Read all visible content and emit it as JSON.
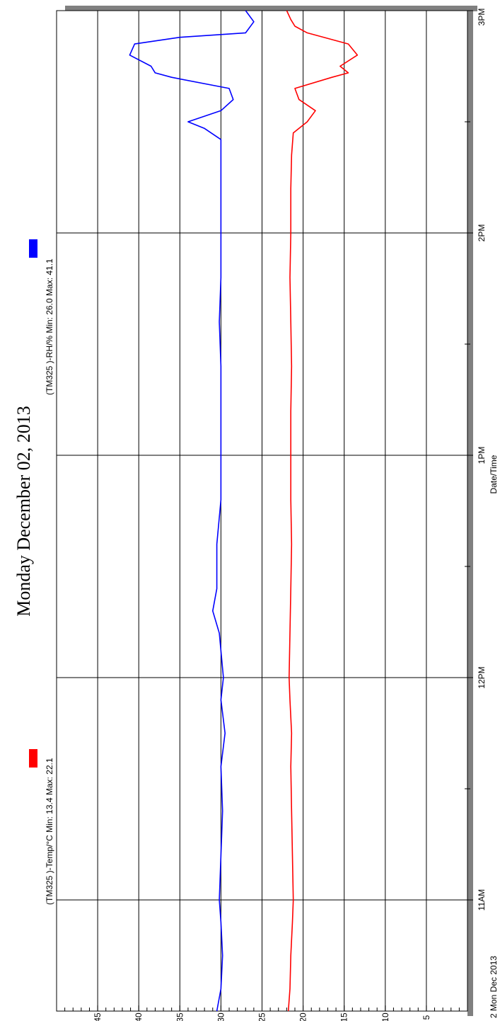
{
  "chart_data": {
    "type": "line",
    "title": "Monday December 02, 2013",
    "xlabel": "Date/Time",
    "x_start_label": "2 Mon Dec 2013",
    "x_ticks": [
      "11AM",
      "12PM",
      "1PM",
      "2PM",
      "3PM"
    ],
    "xlim_hours": [
      10.5,
      15.0
    ],
    "ylim": [
      0,
      50
    ],
    "y_ticks": [
      5,
      10,
      15,
      20,
      25,
      30,
      35,
      40,
      45
    ],
    "grid": true,
    "series": [
      {
        "name": "(TM325   )-Temp/°C Min: 13.4 Max: 22.1",
        "color": "#ff0000",
        "x_hours": [
          10.5,
          10.6,
          10.75,
          10.9,
          11.0,
          11.2,
          11.4,
          11.6,
          11.75,
          11.9,
          12.0,
          12.2,
          12.4,
          12.6,
          12.8,
          13.0,
          13.2,
          13.4,
          13.6,
          13.8,
          14.0,
          14.2,
          14.35,
          14.45,
          14.5,
          14.55,
          14.6,
          14.65,
          14.7,
          14.72,
          14.75,
          14.8,
          14.85,
          14.9,
          14.93,
          14.96,
          15.0
        ],
        "values": [
          21.8,
          21.6,
          21.5,
          21.3,
          21.2,
          21.3,
          21.4,
          21.5,
          21.4,
          21.6,
          21.7,
          21.6,
          21.5,
          21.4,
          21.5,
          21.5,
          21.5,
          21.4,
          21.5,
          21.6,
          21.5,
          21.5,
          21.4,
          21.2,
          19.5,
          18.5,
          20.5,
          21.0,
          16.5,
          14.5,
          15.5,
          13.4,
          14.5,
          19.5,
          21.0,
          21.5,
          22.0
        ]
      },
      {
        "name": "(TM325   )-RH/% Min: 26.0 Max: 41.1",
        "color": "#0000ff",
        "x_hours": [
          10.5,
          10.6,
          10.75,
          10.9,
          11.0,
          11.2,
          11.4,
          11.6,
          11.75,
          11.9,
          12.0,
          12.2,
          12.3,
          12.4,
          12.6,
          12.8,
          13.0,
          13.2,
          13.4,
          13.6,
          13.8,
          14.0,
          14.2,
          14.35,
          14.42,
          14.47,
          14.5,
          14.55,
          14.6,
          14.65,
          14.7,
          14.72,
          14.75,
          14.8,
          14.85,
          14.88,
          14.9,
          14.95,
          15.0
        ],
        "values": [
          30.5,
          30.0,
          29.8,
          30.0,
          30.2,
          30.0,
          29.8,
          30.0,
          29.5,
          30.0,
          29.7,
          30.2,
          31.0,
          30.5,
          30.5,
          30.0,
          30.0,
          30.0,
          30.0,
          30.2,
          30.0,
          30.0,
          30.0,
          30.0,
          30.0,
          32.0,
          34.0,
          30.0,
          28.5,
          29.0,
          36.0,
          38.0,
          38.5,
          41.1,
          40.5,
          35.0,
          27.0,
          26.0,
          27.0
        ]
      }
    ]
  }
}
